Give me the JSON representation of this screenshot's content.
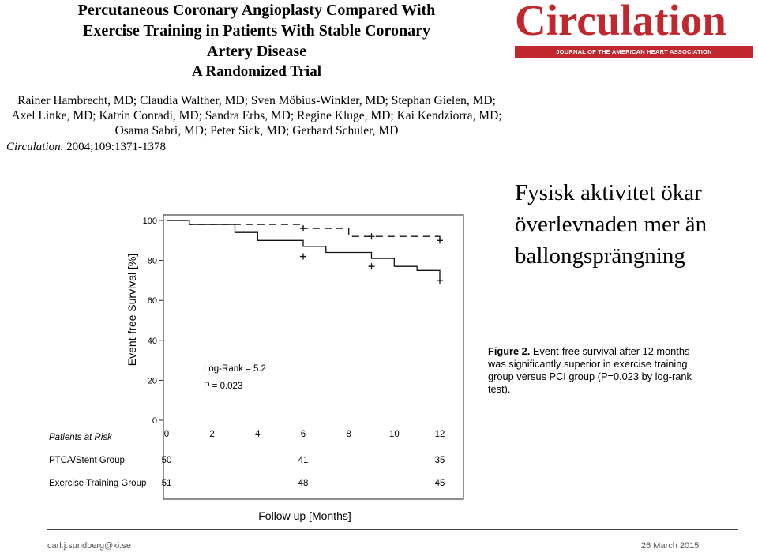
{
  "article": {
    "title_line1": "Percutaneous Coronary Angioplasty Compared With",
    "title_line2": "Exercise Training in Patients With Stable Coronary",
    "title_line3": "Artery Disease",
    "subtitle": "A Randomized Trial",
    "authors_line1": "Rainer Hambrecht, MD; Claudia Walther, MD; Sven Möbius-Winkler, MD; Stephan Gielen, MD;",
    "authors_line2": "Axel Linke, MD; Katrin Conradi, MD; Sandra Erbs, MD; Regine Kluge, MD; Kai Kendziorra, MD;",
    "authors_line3": "Osama Sabri, MD; Peter Sick, MD; Gerhard Schuler, MD",
    "citation_journal": "Circulation.",
    "citation_ref": "2004;109:1371-1378"
  },
  "logo": {
    "name": "Circulation",
    "tagline": "JOURNAL OF THE AMERICAN HEART ASSOCIATION",
    "color": "#c0282d"
  },
  "headline": {
    "line1": "Fysisk aktivitet ökar",
    "line2": "överlevnaden mer än",
    "line3": "ballongsprängning"
  },
  "caption": {
    "label": "Figure 2.",
    "text": "Event-free survival after 12 months was significantly superior in exercise training group versus PCI group",
    "text2": "(P=0.023 by log-rank test)."
  },
  "footer": {
    "email": "carl.j.sundberg@ki.se",
    "date": "26 March 2015"
  },
  "chart_data": {
    "type": "line",
    "ylabel": "Event-free Survival [%]",
    "xlabel": "Follow up [Months]",
    "xlim": [
      0,
      12
    ],
    "ylim": [
      0,
      100
    ],
    "x_ticks": [
      "0",
      "2",
      "4",
      "6",
      "8",
      "10",
      "12"
    ],
    "y_ticks": [
      "0",
      "20",
      "40",
      "60",
      "80",
      "100"
    ],
    "annotation_line1": "Log-Rank = 5.2",
    "annotation_line2": "P = 0.023",
    "series": [
      {
        "name": "PTCA/Stent Group",
        "style": "solid",
        "points": [
          [
            0,
            100
          ],
          [
            1,
            100
          ],
          [
            1,
            98
          ],
          [
            3,
            98
          ],
          [
            3,
            94
          ],
          [
            4,
            94
          ],
          [
            4,
            90
          ],
          [
            6,
            90
          ],
          [
            6,
            87
          ],
          [
            7,
            87
          ],
          [
            7,
            84
          ],
          [
            9,
            84
          ],
          [
            9,
            81
          ],
          [
            10,
            81
          ],
          [
            10,
            77
          ],
          [
            11,
            77
          ],
          [
            11,
            75
          ],
          [
            12,
            75
          ],
          [
            12,
            71
          ]
        ],
        "censor_marks": [
          [
            6,
            82
          ],
          [
            9,
            77
          ],
          [
            12,
            70
          ]
        ]
      },
      {
        "name": "Exercise Training Group",
        "style": "dashed",
        "points": [
          [
            0,
            100
          ],
          [
            1,
            100
          ],
          [
            1,
            98
          ],
          [
            6,
            98
          ],
          [
            6,
            96
          ],
          [
            8,
            96
          ],
          [
            8,
            92
          ],
          [
            12,
            92
          ],
          [
            12,
            90
          ]
        ],
        "censor_marks": [
          [
            6,
            96
          ],
          [
            9,
            92
          ],
          [
            12,
            90
          ]
        ]
      }
    ],
    "risk_table": {
      "header": "Patients at Risk",
      "rows": [
        {
          "label": "PTCA/Stent Group",
          "values": [
            {
              "month": 0,
              "value": "50"
            },
            {
              "month": 6,
              "value": "41"
            },
            {
              "month": 12,
              "value": "35"
            }
          ]
        },
        {
          "label": "Exercise Training Group",
          "values": [
            {
              "month": 0,
              "value": "51"
            },
            {
              "month": 6,
              "value": "48"
            },
            {
              "month": 12,
              "value": "45"
            }
          ]
        }
      ]
    }
  }
}
